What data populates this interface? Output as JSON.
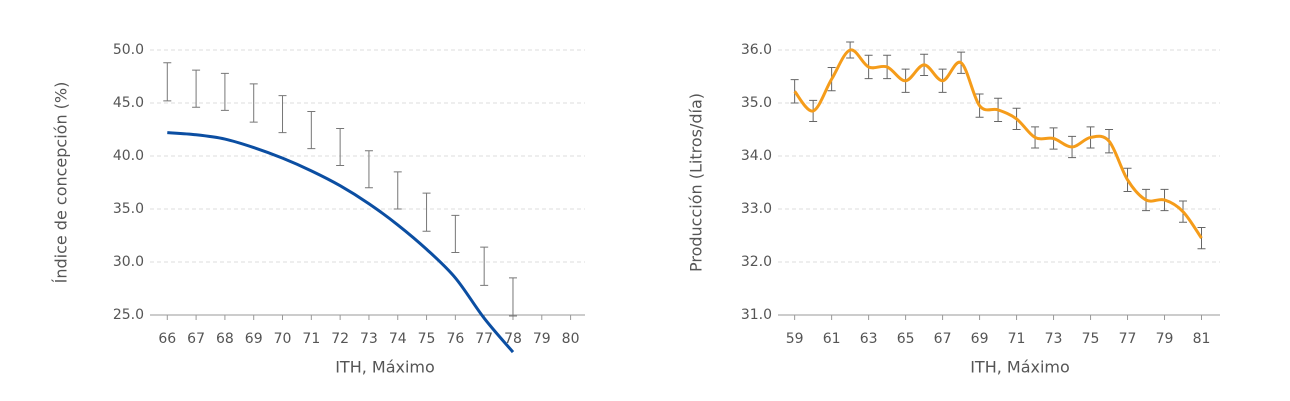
{
  "chart_data": [
    {
      "type": "line",
      "y_label": "Índice de concepción (%)",
      "x_label": "ITH, Máximo",
      "x": [
        66,
        67,
        68,
        69,
        70,
        71,
        72,
        73,
        74,
        75,
        76,
        77,
        78
      ],
      "xlim": [
        65.4,
        80.5
      ],
      "xticks": [
        66,
        67,
        68,
        69,
        70,
        71,
        72,
        73,
        74,
        75,
        76,
        77,
        78,
        79,
        80
      ],
      "ylim": [
        25,
        50
      ],
      "yticks": [
        {
          "value": 25,
          "label": "25.0"
        },
        {
          "value": 30,
          "label": "30.0"
        },
        {
          "value": 35,
          "label": "35.0"
        },
        {
          "value": 40,
          "label": "40.0"
        },
        {
          "value": 45,
          "label": "45.0"
        },
        {
          "value": 50,
          "label": "50.0"
        }
      ],
      "grid": true,
      "error_color": "#777777",
      "series": [
        {
          "color": "#777777",
          "line": false,
          "values": [
            47.0,
            46.35,
            46.05,
            45.0,
            43.95,
            42.45,
            40.85,
            38.75,
            36.75,
            34.7,
            32.65,
            29.6,
            26.7
          ],
          "errors": [
            1.8,
            1.75,
            1.75,
            1.8,
            1.75,
            1.75,
            1.75,
            1.75,
            1.75,
            1.8,
            1.75,
            1.8,
            1.8
          ]
        },
        {
          "color": "#0b4ea2",
          "line": true,
          "values": [
            42.2,
            42.0,
            41.6,
            40.8,
            39.8,
            38.6,
            37.2,
            35.5,
            33.5,
            31.2,
            28.5,
            24.7,
            21.5
          ]
        }
      ]
    },
    {
      "type": "line",
      "y_label": "Producción (Litros/día)",
      "x_label": "ITH, Máximo",
      "x": [
        59,
        60,
        61,
        62,
        63,
        64,
        65,
        66,
        67,
        68,
        69,
        70,
        71,
        72,
        73,
        74,
        75,
        76,
        77,
        78,
        79,
        80,
        81
      ],
      "xlim": [
        58.1,
        82
      ],
      "xticks": [
        59,
        61,
        63,
        65,
        67,
        69,
        71,
        73,
        75,
        77,
        79,
        81
      ],
      "ylim": [
        31,
        36
      ],
      "yticks": [
        {
          "value": 31,
          "label": "31.0"
        },
        {
          "value": 32,
          "label": "32.0"
        },
        {
          "value": 33,
          "label": "33.0"
        },
        {
          "value": 34,
          "label": "34.0"
        },
        {
          "value": 35,
          "label": "35.0"
        },
        {
          "value": 36,
          "label": "36.0"
        }
      ],
      "grid": true,
      "error_color": "#666666",
      "series": [
        {
          "color": "#f59c1a",
          "line": true,
          "values": [
            35.22,
            34.85,
            35.45,
            36.0,
            35.68,
            35.68,
            35.42,
            35.72,
            35.42,
            35.76,
            34.95,
            34.87,
            34.7,
            34.35,
            34.33,
            34.17,
            34.35,
            34.28,
            33.55,
            33.17,
            33.17,
            32.95,
            32.45
          ],
          "errors": [
            0.22,
            0.2,
            0.22,
            0.15,
            0.22,
            0.22,
            0.22,
            0.2,
            0.22,
            0.2,
            0.22,
            0.22,
            0.2,
            0.2,
            0.2,
            0.2,
            0.2,
            0.22,
            0.22,
            0.2,
            0.2,
            0.2,
            0.2
          ]
        }
      ]
    }
  ]
}
